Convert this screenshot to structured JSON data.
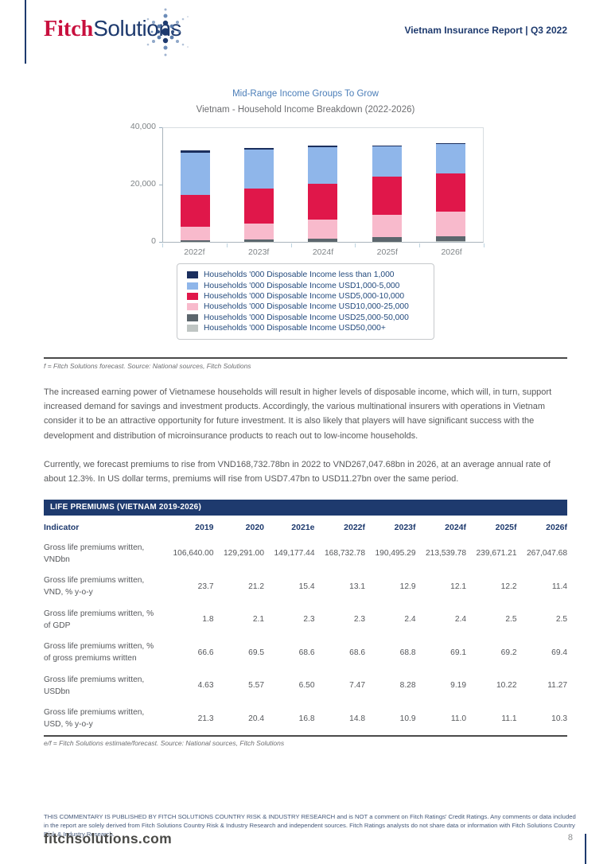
{
  "header": {
    "logo_fitch": "Fitch",
    "logo_solutions": "Solutions",
    "report_title": "Vietnam Insurance Report | Q3 2022"
  },
  "chart": {
    "title": "Mid-Range Income Groups To Grow",
    "subtitle": "Vietnam - Household Income Breakdown (2022-2026)",
    "source_note": "f = Fitch Solutions forecast. Source: National sources, Fitch Solutions"
  },
  "chart_data": {
    "type": "bar",
    "stacked": true,
    "title": "Mid-Range Income Groups To Grow",
    "subtitle": "Vietnam - Household Income Breakdown (2022-2026)",
    "categories": [
      "2022f",
      "2023f",
      "2024f",
      "2025f",
      "2026f"
    ],
    "series": [
      {
        "name": "Households '000 Disposable Income less than 1,000",
        "color": "#1b2f5e",
        "values": [
          700,
          550,
          500,
          350,
          250
        ]
      },
      {
        "name": "Households '000 Disposable Income USD1,000-5,000",
        "color": "#8fb6ea",
        "values": [
          14800,
          13700,
          12600,
          10500,
          10000
        ]
      },
      {
        "name": "Households '000 Disposable Income USD5,000-10,000",
        "color": "#e0174a",
        "values": [
          10900,
          11900,
          12400,
          13300,
          13300
        ]
      },
      {
        "name": "Households '000 Disposable Income USD10,000-25,000",
        "color": "#f8bacc",
        "values": [
          4700,
          5600,
          6700,
          7800,
          8600
        ]
      },
      {
        "name": "Households '000 Disposable Income USD25,000-50,000",
        "color": "#5c666d",
        "values": [
          550,
          800,
          1000,
          1400,
          1700
        ]
      },
      {
        "name": "Households '000 Disposable Income USD50,000+",
        "color": "#bfc5c3",
        "values": [
          50,
          70,
          100,
          150,
          250
        ]
      }
    ],
    "stack_note": "first series renders at top of each bar",
    "ylim": [
      0,
      40000
    ],
    "yticks": [
      "0",
      "20,000",
      "40,000"
    ],
    "grid": false,
    "legend_position": "bottom"
  },
  "body": {
    "paragraph1": "The increased earning power of Vietnamese households will result in higher levels of disposable income, which will, in turn, support increased demand for savings and investment products. Accordingly, the various multinational insurers with operations in Vietnam consider it to be an attractive opportunity for future investment. It is also likely that players will have significant success with the development and distribution of microinsurance products to reach out to low-income households.",
    "paragraph2": "Currently, we forecast premiums to rise from VND168,732.78bn in 2022 to VND267,047.68bn in 2026, at an average annual rate of about 12.3%. In US dollar terms, premiums will rise from USD7.47bn to USD11.27bn over the same period."
  },
  "table": {
    "title": "LIFE PREMIUMS (VIETNAM 2019-2026)",
    "columns": [
      "Indicator",
      "2019",
      "2020",
      "2021e",
      "2022f",
      "2023f",
      "2024f",
      "2025f",
      "2026f"
    ],
    "rows": [
      {
        "indicator": "Gross life premiums written, VNDbn",
        "values": [
          "106,640.00",
          "129,291.00",
          "149,177.44",
          "168,732.78",
          "190,495.29",
          "213,539.78",
          "239,671.21",
          "267,047.68"
        ]
      },
      {
        "indicator": "Gross life premiums written, VND, % y-o-y",
        "values": [
          "23.7",
          "21.2",
          "15.4",
          "13.1",
          "12.9",
          "12.1",
          "12.2",
          "11.4"
        ]
      },
      {
        "indicator": "Gross life premiums written, % of GDP",
        "values": [
          "1.8",
          "2.1",
          "2.3",
          "2.3",
          "2.4",
          "2.4",
          "2.5",
          "2.5"
        ]
      },
      {
        "indicator": "Gross life premiums written, % of gross premiums written",
        "values": [
          "66.6",
          "69.5",
          "68.6",
          "68.6",
          "68.8",
          "69.1",
          "69.2",
          "69.4"
        ]
      },
      {
        "indicator": "Gross life premiums written, USDbn",
        "values": [
          "4.63",
          "5.57",
          "6.50",
          "7.47",
          "8.28",
          "9.19",
          "10.22",
          "11.27"
        ]
      },
      {
        "indicator": "Gross life premiums written, USD, % y-o-y",
        "values": [
          "21.3",
          "20.4",
          "16.8",
          "14.8",
          "10.9",
          "11.0",
          "11.1",
          "10.3"
        ]
      }
    ],
    "source_note": "e/f = Fitch Solutions estimate/forecast. Source: National sources, Fitch Solutions"
  },
  "footer": {
    "disclaimer": "THIS COMMENTARY IS PUBLISHED BY FITCH SOLUTIONS COUNTRY RISK & INDUSTRY RESEARCH and is NOT a comment on Fitch Ratings' Credit Ratings. Any comments or data included in the report are solely derived from Fitch Solutions Country Risk & Industry Research and independent sources. Fitch Ratings analysts do not share data or information with Fitch Solutions Country Risk & Industry Research.",
    "website": "fitchsolutions.com",
    "page_number": "8"
  }
}
